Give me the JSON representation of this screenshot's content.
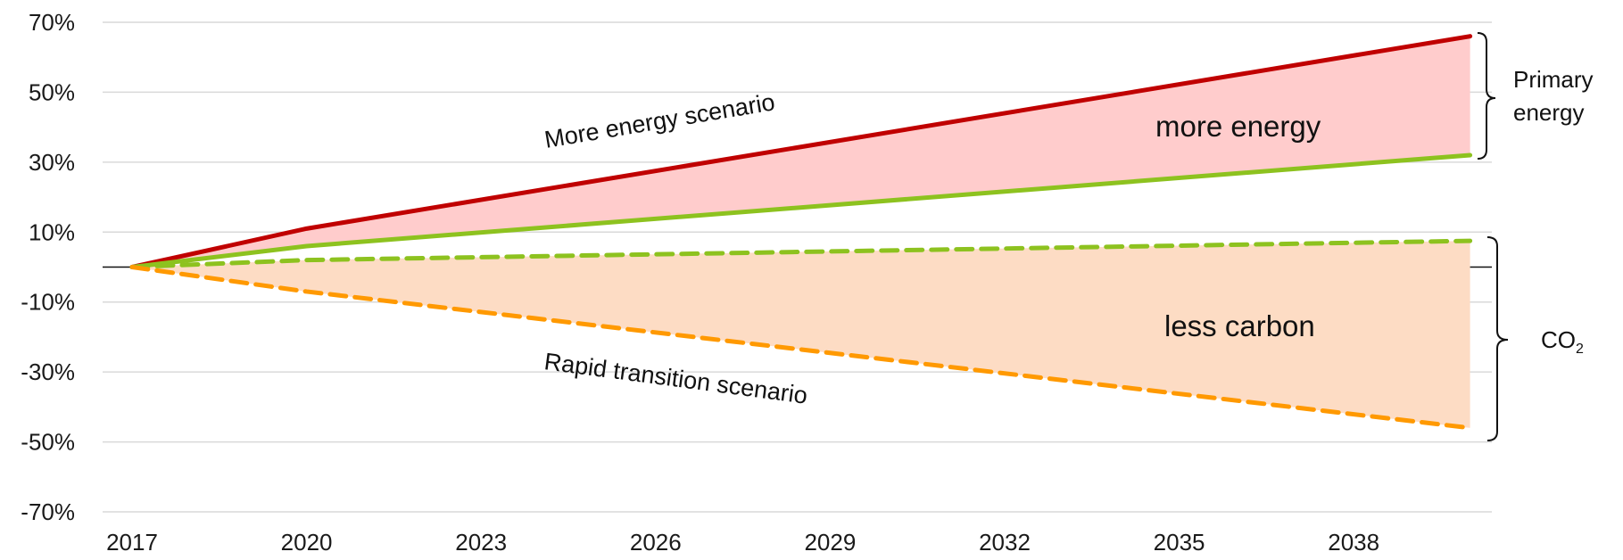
{
  "chart_data": {
    "type": "line",
    "title": "",
    "xlabel": "",
    "ylabel": "",
    "x_ticks": [
      "2017",
      "2020",
      "2023",
      "2026",
      "2029",
      "2032",
      "2035",
      "2038"
    ],
    "y_ticks": [
      "70%",
      "50%",
      "30%",
      "10%",
      "-10%",
      "-30%",
      "-50%",
      "-70%"
    ],
    "y_tick_values": [
      70,
      50,
      30,
      10,
      -10,
      -30,
      -50,
      -70
    ],
    "xlim": [
      2017,
      2040
    ],
    "ylim": [
      -70,
      70
    ],
    "grid": true,
    "series": [
      {
        "key": "more_energy_primary",
        "x": [
          2017,
          2020,
          2040
        ],
        "values": [
          0,
          11,
          66
        ],
        "color": "#c00000",
        "dash": false
      },
      {
        "key": "rapid_primary",
        "x": [
          2017,
          2020,
          2040
        ],
        "values": [
          0,
          6,
          32
        ],
        "color": "#8dc21f",
        "dash": false
      },
      {
        "key": "more_energy_co2",
        "x": [
          2017,
          2020,
          2040
        ],
        "values": [
          0,
          2,
          7.5
        ],
        "color": "#8dc21f",
        "dash": true
      },
      {
        "key": "rapid_co2",
        "x": [
          2017,
          2020,
          2040
        ],
        "values": [
          0,
          -7,
          -46
        ],
        "color": "#ff9900",
        "dash": true
      }
    ],
    "bands": [
      {
        "upper": "more_energy_primary",
        "lower": "rapid_primary",
        "color": "#ffcccc"
      },
      {
        "upper": "more_energy_co2",
        "lower": "rapid_co2",
        "color": "#fddcc4"
      }
    ],
    "annotations": {
      "more_energy_scenario": "More energy scenario",
      "rapid_transition_scenario": "Rapid transition scenario",
      "more_energy": "more energy",
      "less_carbon": "less carbon",
      "primary_energy_line1": "Primary",
      "primary_energy_line2": "energy",
      "co2_main": "CO",
      "co2_sub": "2"
    }
  }
}
